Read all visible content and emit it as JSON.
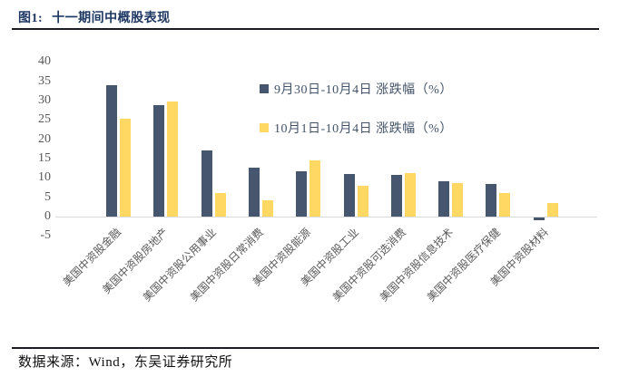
{
  "header": {
    "figure_label": "图1:",
    "title": "十一期间中概股表现"
  },
  "footer": {
    "text": "数据来源：Wind，东吴证券研究所"
  },
  "colors": {
    "bar_navy": "#46566E",
    "bar_gold": "#FFD864",
    "title_navy": "#1F3864",
    "axis_line": "#D9D9D9",
    "tick_text": "#595959",
    "legend_text": "#44546A",
    "divider": "#1B1C24"
  },
  "chart_data": {
    "type": "bar",
    "title": "十一期间中概股表现",
    "xlabel": "",
    "ylabel": "",
    "ylim": [
      -5,
      40
    ],
    "ytick_step": 5,
    "yticks": [
      40,
      35,
      30,
      25,
      20,
      15,
      10,
      5,
      0,
      -5
    ],
    "grid": false,
    "legend_position": "inside-upper-right",
    "categories": [
      "美国中资股金融",
      "美国中资股房地产",
      "美国中资股公用事业",
      "美国中资股日常消费",
      "美国中资股能源",
      "美国中资股工业",
      "美国中资股可选消费",
      "美国中资股信息技术",
      "美国中资股医疗保健",
      "美国中资股材料"
    ],
    "series": [
      {
        "name": "9月30日-10月4日 涨跌幅（%）",
        "color": "#46566E",
        "values": [
          34.0,
          28.7,
          17.0,
          12.7,
          11.7,
          10.9,
          10.7,
          9.1,
          8.4,
          -0.6
        ]
      },
      {
        "name": "10月1日-10月4日 涨跌幅（%）",
        "color": "#FFD864",
        "values": [
          25.2,
          29.8,
          6.2,
          4.3,
          14.6,
          8.0,
          11.2,
          8.7,
          6.2,
          3.5
        ]
      }
    ]
  }
}
